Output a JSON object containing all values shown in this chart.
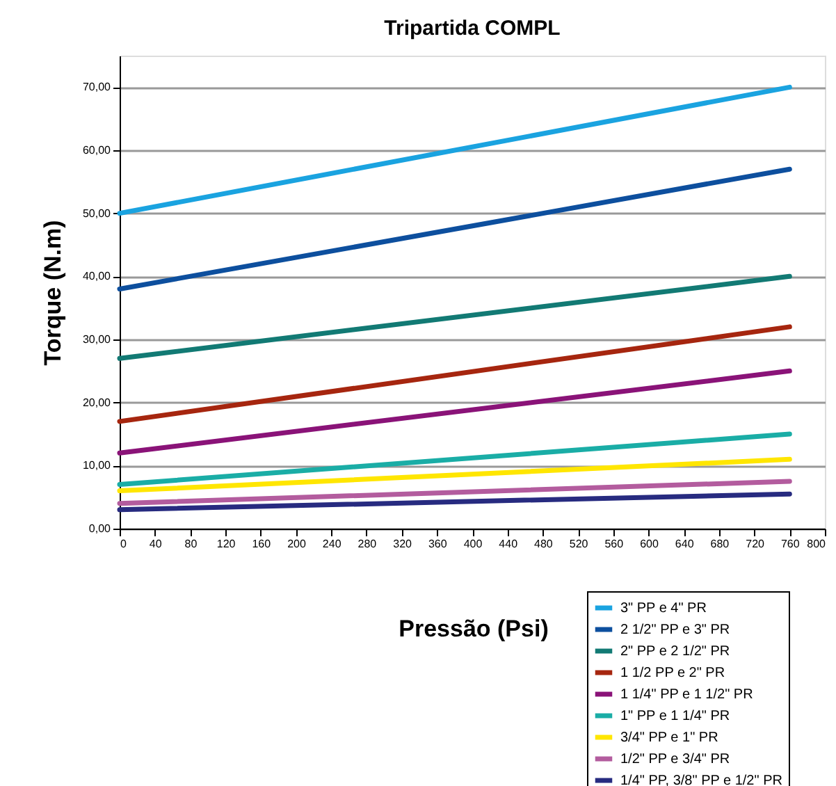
{
  "chart_data": {
    "type": "line",
    "title": "Tripartida COMPL",
    "xlabel": "Pressão (Psi)",
    "ylabel": "Torque (N.m)",
    "x": [
      0,
      760
    ],
    "series": [
      {
        "name": "3\" PP e 4\" PR",
        "color": "#1aa3e0",
        "values": [
          50,
          70
        ]
      },
      {
        "name": "2 1/2\" PP e 3\" PR",
        "color": "#0d4f9e",
        "values": [
          38,
          57
        ]
      },
      {
        "name": "2\" PP e 2 1/2\" PR",
        "color": "#127a74",
        "values": [
          27,
          40
        ]
      },
      {
        "name": "1 1/2 PP e 2\" PR",
        "color": "#a6260f",
        "values": [
          17,
          32
        ]
      },
      {
        "name": "1 1/4\" PP e 1 1/2\" PR",
        "color": "#8a1378",
        "values": [
          12,
          25
        ]
      },
      {
        "name": "1\" PP e 1 1/4\" PR",
        "color": "#1aada6",
        "values": [
          7,
          15
        ]
      },
      {
        "name": "3/4\" PP e 1\" PR",
        "color": "#ffe600",
        "values": [
          6,
          11
        ]
      },
      {
        "name": "1/2\" PP e 3/4\" PR",
        "color": "#b35c9e",
        "values": [
          4,
          7.5
        ]
      },
      {
        "name": "1/4\" PP, 3/8\" PP e 1/2\" PR",
        "color": "#272b80",
        "values": [
          3,
          5.5
        ]
      }
    ],
    "xlim": [
      0,
      800
    ],
    "xticks": [
      0,
      40,
      80,
      120,
      160,
      200,
      240,
      280,
      320,
      360,
      400,
      440,
      480,
      520,
      560,
      600,
      640,
      680,
      720,
      760,
      800
    ],
    "ylim": [
      0,
      75
    ],
    "yticks": [
      {
        "value": 0,
        "label": "0,00"
      },
      {
        "value": 10,
        "label": "10,00"
      },
      {
        "value": 20,
        "label": "20,00"
      },
      {
        "value": 30,
        "label": "30,00"
      },
      {
        "value": 40,
        "label": "40,00"
      },
      {
        "value": 50,
        "label": "50,00"
      },
      {
        "value": 60,
        "label": "60,00"
      },
      {
        "value": 70,
        "label": "70,00"
      }
    ],
    "grid": "y",
    "legend": "bottom right",
    "line_style": "solid"
  }
}
